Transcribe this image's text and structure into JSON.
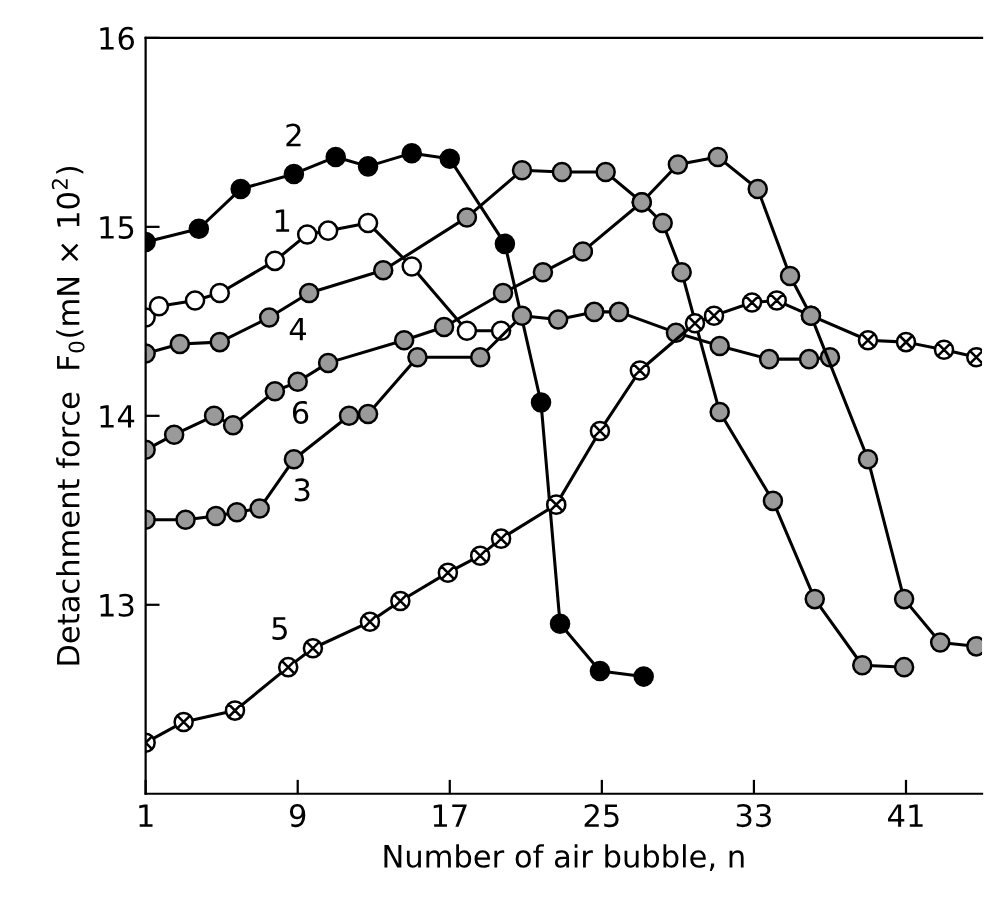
{
  "chart_data": {
    "type": "line",
    "xlabel": "Number of air bubble, n",
    "ylabel": "Detachment force  F$_{0}$(mN × 10$^{2}$)",
    "xlim": [
      1,
      45
    ],
    "ylim": [
      12,
      16
    ],
    "xticks": [
      1,
      9,
      17,
      25,
      33,
      41
    ],
    "yticks": [
      13,
      14,
      15,
      16
    ],
    "grid": false,
    "legend": false,
    "marker": "circle",
    "line_style": "solid",
    "series": [
      {
        "name": "1",
        "color": "#000000",
        "x": [
          1,
          1.7,
          3.6,
          4.9,
          7.8,
          9.5,
          10.6,
          12.7,
          15,
          17.9,
          19.7
        ],
        "values": [
          14.52,
          14.58,
          14.61,
          14.65,
          14.82,
          14.96,
          14.98,
          15.02,
          14.79,
          14.45,
          14.45
        ]
      },
      {
        "name": "2",
        "color": "#000000",
        "x": [
          1,
          3.8,
          6,
          8.8,
          11,
          12.7,
          15,
          17,
          19.9,
          21.8,
          22.8,
          24.9,
          27.2
        ],
        "values": [
          14.92,
          14.99,
          15.2,
          15.28,
          15.37,
          15.32,
          15.39,
          15.36,
          14.91,
          14.07,
          12.9,
          12.65,
          12.62
        ]
      },
      {
        "name": "3",
        "color": "#000000",
        "x": [
          1,
          3.1,
          4.7,
          5.8,
          7,
          8.8,
          11.7,
          12.7,
          15.3,
          18.6,
          20.8,
          22.7,
          24.6,
          25.9,
          28.9,
          31.2,
          33.8,
          35.9,
          37
        ],
        "values": [
          13.45,
          13.45,
          13.47,
          13.49,
          13.51,
          13.77,
          14.0,
          14.01,
          14.31,
          14.31,
          14.53,
          14.51,
          14.55,
          14.55,
          14.44,
          14.37,
          14.3,
          14.3,
          14.31
        ]
      },
      {
        "name": "4",
        "color": "#000000",
        "x": [
          1,
          2.8,
          4.9,
          7.5,
          9.6,
          13.5,
          17.9,
          20.8,
          22.9,
          25.2,
          27.1,
          28.2,
          29.2,
          31.2,
          34,
          36.2,
          38.7,
          40.9
        ],
        "values": [
          14.33,
          14.38,
          14.39,
          14.52,
          14.65,
          14.77,
          15.05,
          15.3,
          15.29,
          15.29,
          15.13,
          15.02,
          14.76,
          14.02,
          13.55,
          13.03,
          12.68,
          12.67
        ]
      },
      {
        "name": "5",
        "color": "#000000",
        "marker": "cross",
        "x": [
          1,
          3,
          5.7,
          8.5,
          9.8,
          12.8,
          14.4,
          16.9,
          18.6,
          19.7,
          22.6,
          24.9,
          27,
          29.9,
          30.9,
          32.9,
          34.2,
          36,
          39,
          41,
          43,
          44.7
        ],
        "values": [
          12.27,
          12.38,
          12.44,
          12.67,
          12.77,
          12.91,
          13.02,
          13.17,
          13.26,
          13.35,
          13.53,
          13.92,
          14.24,
          14.49,
          14.53,
          14.6,
          14.61,
          14.53,
          14.4,
          14.39,
          14.35,
          14.31
        ]
      },
      {
        "name": "6",
        "color": "#000000",
        "x": [
          1,
          2.5,
          4.6,
          5.6,
          7.8,
          9,
          10.6,
          14.6,
          16.7,
          19.8,
          21.9,
          24,
          27.1,
          29,
          31.1,
          33.2,
          34.9,
          36,
          39,
          40.9,
          42.8,
          44.7
        ],
        "values": [
          13.82,
          13.9,
          14.0,
          13.95,
          14.13,
          14.18,
          14.28,
          14.4,
          14.47,
          14.65,
          14.76,
          14.87,
          15.13,
          15.33,
          15.37,
          15.2,
          14.74,
          14.53,
          13.77,
          13.03,
          12.8,
          12.78
        ]
      }
    ]
  }
}
